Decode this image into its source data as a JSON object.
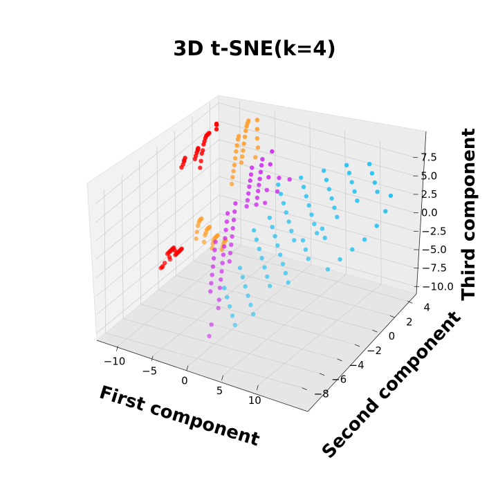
{
  "chart_data": {
    "type": "scatter",
    "title": "3D t-SNE(k=4)",
    "xlabel": "First component",
    "ylabel": "Second component",
    "zlabel": "Third component",
    "xlim": [
      -13,
      15
    ],
    "ylim": [
      -9,
      5
    ],
    "zlim": [
      -11,
      8.5
    ],
    "xticks": [
      "−10",
      "−5",
      "0",
      "5",
      "10"
    ],
    "yticks": [
      "−8",
      "−6",
      "−4",
      "−2",
      "0",
      "2",
      "4"
    ],
    "zticks": [
      "−10.0",
      "−7.5",
      "−5.0",
      "−2.5",
      "0.0",
      "2.5",
      "5.0",
      "7.5"
    ],
    "xtick_values": [
      -10,
      -5,
      0,
      5,
      10
    ],
    "ytick_values": [
      -8,
      -6,
      -4,
      -2,
      0,
      2,
      4
    ],
    "ztick_values": [
      -10,
      -7.5,
      -5,
      -2.5,
      0,
      2.5,
      5,
      7.5
    ],
    "grid": true,
    "series": [
      {
        "color": "#ff0000",
        "points": [
          [
            -12.5,
            3.5,
            5.0
          ],
          [
            -12.0,
            3.0,
            5.5
          ],
          [
            -11.5,
            2.5,
            6.0
          ],
          [
            -11.0,
            2.0,
            6.5
          ],
          [
            -10.5,
            1.5,
            6.8
          ],
          [
            -10.0,
            1.0,
            7.0
          ],
          [
            -9.5,
            0.5,
            7.2
          ],
          [
            -9.0,
            0.0,
            7.0
          ],
          [
            -8.5,
            -0.5,
            7.2
          ],
          [
            -12.2,
            2.0,
            4.5
          ],
          [
            -11.6,
            1.5,
            5.0
          ],
          [
            -11.0,
            1.0,
            5.5
          ],
          [
            -10.5,
            0.5,
            5.8
          ],
          [
            -10.0,
            0.0,
            6.0
          ],
          [
            -9.5,
            -0.5,
            6.2
          ],
          [
            -12.8,
            1.0,
            4.0
          ],
          [
            -12.3,
            0.5,
            4.3
          ],
          [
            -11.7,
            0.0,
            4.8
          ],
          [
            -11.2,
            -0.5,
            5.0
          ],
          [
            -10.8,
            -1.0,
            5.2
          ],
          [
            -8.0,
            -1.0,
            6.8
          ],
          [
            -7.5,
            -1.5,
            6.5
          ],
          [
            -11.8,
            3.8,
            6.0
          ],
          [
            -10.8,
            3.0,
            7.2
          ],
          [
            -9.8,
            2.2,
            7.5
          ],
          [
            -12.0,
            -1.0,
            -6.0
          ],
          [
            -11.5,
            -1.5,
            -5.5
          ],
          [
            -11.0,
            -2.0,
            -5.0
          ],
          [
            -10.5,
            -2.5,
            -4.5
          ],
          [
            -10.0,
            -3.0,
            -4.0
          ],
          [
            -9.5,
            -3.5,
            -3.5
          ],
          [
            -9.0,
            -4.0,
            -3.0
          ],
          [
            -8.5,
            -4.5,
            -2.5
          ],
          [
            -11.5,
            -0.5,
            -6.5
          ],
          [
            -11.0,
            -1.0,
            -6.0
          ],
          [
            -10.5,
            -1.5,
            -5.5
          ],
          [
            -10.0,
            -2.0,
            -5.0
          ],
          [
            -9.5,
            -2.5,
            -4.5
          ],
          [
            -9.0,
            -3.0,
            -4.0
          ],
          [
            -8.5,
            -3.5,
            -3.5
          ],
          [
            -8.0,
            -4.0,
            -3.0
          ],
          [
            -12.5,
            -0.5,
            -7.0
          ],
          [
            -12.0,
            -1.5,
            -6.8
          ],
          [
            -10.8,
            -3.0,
            -5.8
          ],
          [
            -9.8,
            -4.0,
            -5.0
          ],
          [
            -8.8,
            -5.0,
            -4.0
          ],
          [
            -8.0,
            -5.5,
            -3.2
          ],
          [
            -7.5,
            -5.0,
            -2.5
          ]
        ]
      },
      {
        "color": "#ffa030",
        "points": [
          [
            -7.5,
            4.0,
            7.5
          ],
          [
            -7.0,
            3.5,
            7.8
          ],
          [
            -6.5,
            3.0,
            8.0
          ],
          [
            -6.0,
            2.5,
            8.0
          ],
          [
            -5.5,
            2.0,
            7.8
          ],
          [
            -5.0,
            1.5,
            7.5
          ],
          [
            -4.5,
            1.0,
            7.2
          ],
          [
            -4.0,
            0.5,
            7.0
          ],
          [
            -3.5,
            0.0,
            6.8
          ],
          [
            -7.0,
            2.5,
            7.0
          ],
          [
            -6.5,
            2.0,
            7.2
          ],
          [
            -6.0,
            1.5,
            7.0
          ],
          [
            -5.5,
            1.0,
            6.8
          ],
          [
            -5.0,
            0.5,
            6.5
          ],
          [
            -4.5,
            0.0,
            6.2
          ],
          [
            -4.0,
            -0.5,
            6.0
          ],
          [
            -3.5,
            -1.0,
            5.8
          ],
          [
            -3.0,
            -1.5,
            5.5
          ],
          [
            -6.0,
            3.8,
            8.2
          ],
          [
            -5.0,
            3.0,
            8.0
          ],
          [
            -4.0,
            2.2,
            7.8
          ],
          [
            -3.0,
            1.5,
            7.5
          ],
          [
            -2.5,
            0.8,
            7.0
          ],
          [
            -8.0,
            -1.0,
            -1.0
          ],
          [
            -7.5,
            -1.5,
            -0.5
          ],
          [
            -7.0,
            -2.0,
            0.0
          ],
          [
            -6.5,
            -2.5,
            0.3
          ],
          [
            -6.0,
            -3.0,
            0.5
          ],
          [
            -5.5,
            -3.5,
            0.3
          ],
          [
            -5.0,
            -4.0,
            0.0
          ],
          [
            -7.5,
            -0.5,
            -2.5
          ],
          [
            -7.0,
            -1.0,
            -2.0
          ],
          [
            -6.5,
            -1.5,
            -1.5
          ],
          [
            -6.0,
            -2.0,
            -1.0
          ],
          [
            -5.5,
            -2.5,
            -0.8
          ],
          [
            -5.0,
            -3.0,
            -0.5
          ],
          [
            -4.5,
            -3.5,
            -0.8
          ],
          [
            -7.0,
            0.0,
            -4.0
          ],
          [
            -6.5,
            -0.5,
            -3.5
          ],
          [
            -6.0,
            -1.0,
            -3.0
          ],
          [
            -5.5,
            -1.5,
            -2.5
          ],
          [
            -5.0,
            -2.0,
            -2.2
          ],
          [
            -4.5,
            -2.5,
            -2.0
          ],
          [
            -4.0,
            -3.0,
            -2.0
          ],
          [
            -6.5,
            0.5,
            -5.0
          ],
          [
            -6.0,
            0.0,
            -4.5
          ],
          [
            -5.5,
            -0.5,
            -4.2
          ],
          [
            -5.0,
            -1.0,
            -4.0
          ],
          [
            -4.5,
            -1.5,
            -3.8
          ]
        ]
      },
      {
        "color": "#cc22ee",
        "points": [
          [
            -2.0,
            0.0,
            6.5
          ],
          [
            -1.5,
            -0.5,
            6.2
          ],
          [
            -1.0,
            -1.0,
            6.0
          ],
          [
            -0.5,
            -1.5,
            5.8
          ],
          [
            0.0,
            -2.0,
            5.5
          ],
          [
            0.5,
            -2.5,
            5.2
          ],
          [
            1.0,
            -3.0,
            5.0
          ],
          [
            -1.5,
            0.8,
            7.0
          ],
          [
            -1.0,
            0.3,
            6.8
          ],
          [
            -0.5,
            -0.2,
            6.5
          ],
          [
            0.0,
            -0.7,
            6.2
          ],
          [
            0.5,
            -1.2,
            6.0
          ],
          [
            1.0,
            -1.7,
            5.8
          ],
          [
            1.5,
            -2.2,
            5.5
          ],
          [
            2.0,
            -2.7,
            5.2
          ],
          [
            -1.0,
            1.5,
            7.5
          ],
          [
            0.0,
            0.5,
            7.0
          ],
          [
            1.0,
            -0.5,
            6.5
          ],
          [
            2.0,
            -1.5,
            6.0
          ],
          [
            3.0,
            -2.5,
            5.5
          ],
          [
            2.5,
            -0.5,
            6.8
          ],
          [
            3.5,
            -1.5,
            6.2
          ],
          [
            4.0,
            -0.5,
            7.0
          ],
          [
            -3.0,
            -2.0,
            2.0
          ],
          [
            -2.5,
            -2.5,
            1.5
          ],
          [
            -2.0,
            -3.0,
            1.0
          ],
          [
            -1.5,
            -3.5,
            0.5
          ],
          [
            -1.0,
            -4.0,
            0.0
          ],
          [
            -0.5,
            -4.5,
            -0.5
          ],
          [
            0.0,
            -5.0,
            -1.0
          ],
          [
            0.5,
            -5.5,
            -1.5
          ],
          [
            1.0,
            -6.0,
            -2.0
          ],
          [
            1.5,
            -6.5,
            -2.5
          ],
          [
            -2.5,
            -1.5,
            3.0
          ],
          [
            -2.0,
            -2.0,
            2.5
          ],
          [
            -1.5,
            -2.5,
            2.0
          ],
          [
            -1.0,
            -3.0,
            1.5
          ],
          [
            -0.5,
            -3.5,
            1.0
          ],
          [
            0.0,
            -4.0,
            0.5
          ],
          [
            0.5,
            -4.5,
            0.0
          ],
          [
            1.0,
            -5.0,
            -0.5
          ],
          [
            -3.5,
            -3.0,
            -1.0
          ],
          [
            -3.0,
            -3.5,
            -1.5
          ],
          [
            -2.5,
            -4.0,
            -2.0
          ],
          [
            -2.0,
            -4.5,
            -2.5
          ],
          [
            -1.5,
            -5.0,
            -3.0
          ],
          [
            -1.0,
            -5.5,
            -3.5
          ],
          [
            -0.5,
            -6.0,
            -4.0
          ],
          [
            2.0,
            -7.0,
            -3.5
          ],
          [
            2.5,
            -7.5,
            -4.0
          ],
          [
            1.5,
            -7.5,
            -6.5
          ],
          [
            1.8,
            -8.0,
            -7.5
          ]
        ]
      },
      {
        "color": "#20c0f0",
        "points": [
          [
            3.0,
            -1.0,
            6.5
          ],
          [
            4.0,
            -1.5,
            6.0
          ],
          [
            5.0,
            -2.0,
            5.5
          ],
          [
            6.0,
            -2.5,
            5.0
          ],
          [
            7.0,
            -3.0,
            4.5
          ],
          [
            8.0,
            -3.5,
            4.0
          ],
          [
            9.0,
            -4.0,
            3.5
          ],
          [
            5.0,
            0.0,
            7.0
          ],
          [
            6.0,
            -0.5,
            6.5
          ],
          [
            7.0,
            -1.0,
            6.0
          ],
          [
            8.0,
            -1.5,
            5.5
          ],
          [
            9.0,
            -2.0,
            5.0
          ],
          [
            10.0,
            -2.5,
            4.5
          ],
          [
            11.0,
            -3.0,
            4.0
          ],
          [
            7.0,
            1.0,
            7.5
          ],
          [
            8.0,
            0.5,
            7.0
          ],
          [
            9.0,
            0.0,
            6.5
          ],
          [
            10.0,
            -0.5,
            6.0
          ],
          [
            11.0,
            -1.0,
            5.5
          ],
          [
            12.0,
            -1.5,
            5.0
          ],
          [
            9.0,
            2.0,
            7.8
          ],
          [
            10.0,
            1.5,
            7.5
          ],
          [
            11.0,
            1.0,
            7.0
          ],
          [
            12.0,
            0.5,
            6.5
          ],
          [
            13.0,
            0.0,
            6.0
          ],
          [
            11.0,
            3.0,
            7.5
          ],
          [
            12.0,
            2.5,
            7.0
          ],
          [
            13.0,
            2.0,
            6.5
          ],
          [
            14.0,
            1.5,
            6.0
          ],
          [
            14.0,
            3.0,
            4.0
          ],
          [
            14.5,
            2.0,
            3.0
          ],
          [
            14.5,
            1.0,
            2.0
          ],
          [
            14.0,
            0.0,
            1.0
          ],
          [
            13.5,
            -1.0,
            0.5
          ],
          [
            13.0,
            -2.0,
            0.0
          ],
          [
            12.5,
            -3.0,
            -0.5
          ],
          [
            2.0,
            -3.0,
            2.0
          ],
          [
            3.0,
            -3.5,
            1.5
          ],
          [
            4.0,
            -4.0,
            1.0
          ],
          [
            5.0,
            -4.5,
            0.5
          ],
          [
            6.0,
            -5.0,
            0.0
          ],
          [
            7.0,
            -5.5,
            -0.5
          ],
          [
            8.0,
            -6.0,
            -1.0
          ],
          [
            3.0,
            -2.0,
            3.0
          ],
          [
            4.0,
            -2.5,
            2.5
          ],
          [
            5.0,
            -3.0,
            2.0
          ],
          [
            6.0,
            -3.5,
            1.5
          ],
          [
            7.0,
            -4.0,
            1.0
          ],
          [
            8.0,
            -4.5,
            0.5
          ],
          [
            9.0,
            -5.0,
            0.0
          ],
          [
            10.0,
            -5.5,
            -0.5
          ],
          [
            2.5,
            -5.0,
            -1.0
          ],
          [
            3.5,
            -5.5,
            -1.5
          ],
          [
            4.5,
            -6.0,
            -2.0
          ],
          [
            5.5,
            -6.5,
            -2.5
          ],
          [
            6.5,
            -7.0,
            -3.0
          ],
          [
            7.5,
            -7.5,
            -3.5
          ],
          [
            1.5,
            -6.0,
            -3.0
          ],
          [
            2.5,
            -6.5,
            -3.5
          ],
          [
            3.5,
            -7.0,
            -4.0
          ],
          [
            4.5,
            -7.5,
            -4.5
          ],
          [
            5.5,
            -8.0,
            -5.0
          ],
          [
            9.0,
            -3.0,
            2.5
          ],
          [
            10.0,
            -3.5,
            2.0
          ],
          [
            11.0,
            -4.0,
            1.5
          ],
          [
            10.5,
            -2.0,
            3.5
          ],
          [
            11.5,
            -2.5,
            3.0
          ]
        ]
      }
    ]
  }
}
